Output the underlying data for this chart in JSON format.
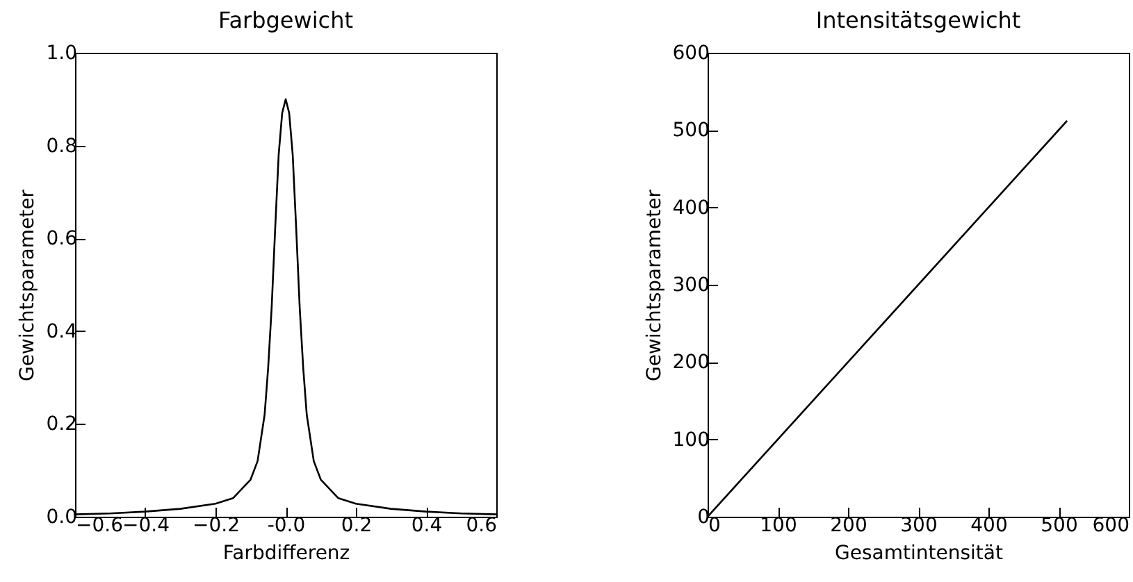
{
  "chart_data": [
    {
      "type": "line",
      "title": "Farbgewicht",
      "xlabel": "Farbdifferenz",
      "ylabel": "Gewichtsparameter",
      "x": [
        -0.6,
        -0.5,
        -0.4,
        -0.3,
        -0.2,
        -0.15,
        -0.1,
        -0.08,
        -0.06,
        -0.05,
        -0.04,
        -0.03,
        -0.02,
        -0.01,
        0,
        0.01,
        0.02,
        0.03,
        0.04,
        0.05,
        0.06,
        0.08,
        0.1,
        0.15,
        0.2,
        0.3,
        0.4,
        0.5,
        0.6
      ],
      "series": [
        {
          "color": "#000000",
          "values": [
            0.005,
            0.007,
            0.011,
            0.017,
            0.028,
            0.04,
            0.08,
            0.12,
            0.22,
            0.32,
            0.45,
            0.62,
            0.78,
            0.87,
            0.9,
            0.87,
            0.78,
            0.62,
            0.45,
            0.32,
            0.22,
            0.12,
            0.08,
            0.04,
            0.028,
            0.017,
            0.011,
            0.007,
            0.005
          ]
        }
      ],
      "xlim": [
        -0.6,
        0.6
      ],
      "xticks": [
        -0.6,
        -0.4,
        -0.2,
        {
          "value": 0,
          "label": "-0.0"
        },
        0.2,
        0.4,
        0.6
      ],
      "ylim": [
        0,
        1
      ],
      "yticks": [
        {
          "value": 0,
          "label": "0.0"
        },
        0.2,
        0.4,
        0.6,
        0.8,
        {
          "value": 1,
          "label": "1.0"
        }
      ]
    },
    {
      "type": "line",
      "title": "Intensitätsgewicht",
      "xlabel": "Gesamtintensität",
      "ylabel": "Gewichtsparameter",
      "x": [
        0,
        512
      ],
      "series": [
        {
          "color": "#000000",
          "values": [
            0,
            512
          ]
        }
      ],
      "xlim": [
        0,
        600
      ],
      "xticks": [
        0,
        100,
        200,
        300,
        400,
        500,
        600
      ],
      "ylim": [
        0,
        600
      ],
      "yticks": [
        0,
        100,
        200,
        300,
        400,
        500,
        600
      ]
    }
  ]
}
